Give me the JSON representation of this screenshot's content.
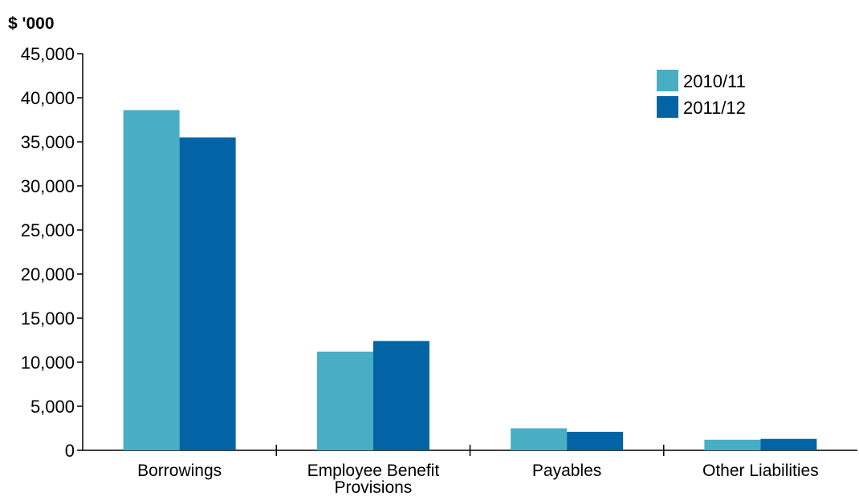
{
  "chart_data": {
    "type": "bar",
    "title": "",
    "unit_label": "$ '000",
    "xlabel": "",
    "ylabel": "",
    "categories": [
      [
        "Borrowings"
      ],
      [
        "Employee Benefit",
        "Provisions"
      ],
      [
        "Payables"
      ],
      [
        "Other Liabilities"
      ]
    ],
    "series": [
      {
        "name": "2010/11",
        "color": "#47AEC4",
        "values": [
          38600,
          11200,
          2500,
          1200
        ]
      },
      {
        "name": "2011/12",
        "color": "#0264A5",
        "values": [
          35500,
          12400,
          2100,
          1300
        ]
      }
    ],
    "ylim": [
      0,
      45000
    ],
    "yticks": [
      0,
      5000,
      10000,
      15000,
      20000,
      25000,
      30000,
      35000,
      40000,
      45000
    ],
    "ytick_labels": [
      "0",
      "5,000",
      "10,000",
      "15,000",
      "20,000",
      "25,000",
      "30,000",
      "35,000",
      "40,000",
      "45,000"
    ],
    "grid": false,
    "legend_position": "top-right"
  }
}
